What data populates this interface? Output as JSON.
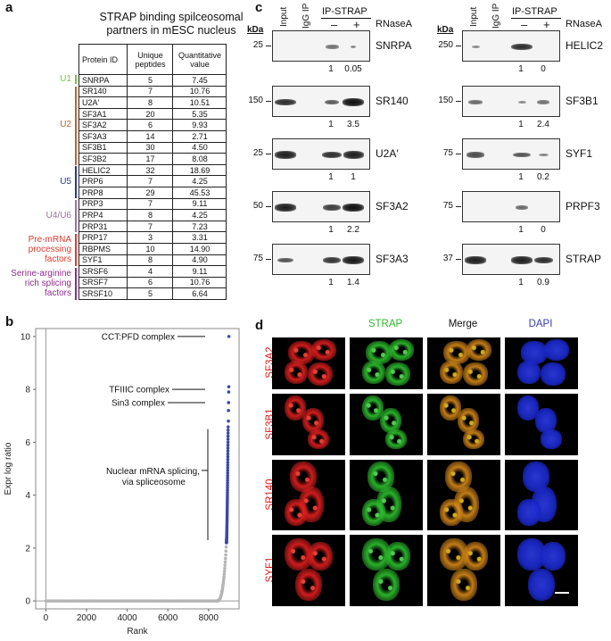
{
  "panel_letters": {
    "a": "a",
    "b": "b",
    "c": "c",
    "d": "d"
  },
  "panel_a": {
    "title_line1": "STRAP binding spilceosomal",
    "title_line2": "partners in mESC nucleus",
    "headers": {
      "protein_id": "Protein ID",
      "unique_peptides": "Unique peptides",
      "quant_value": "Quantitative value"
    },
    "rows": [
      {
        "protein": "SNRPA",
        "peptides": "5",
        "value": "7.45"
      },
      {
        "protein": "SR140",
        "peptides": "7",
        "value": "10.76"
      },
      {
        "protein": "U2A′",
        "peptides": "8",
        "value": "10.51"
      },
      {
        "protein": "SF3A1",
        "peptides": "20",
        "value": "5.35"
      },
      {
        "protein": "SF3A2",
        "peptides": "6",
        "value": "9.93"
      },
      {
        "protein": "SF3A3",
        "peptides": "14",
        "value": "2.71"
      },
      {
        "protein": "SF3B1",
        "peptides": "30",
        "value": "4.50"
      },
      {
        "protein": "SF3B2",
        "peptides": "17",
        "value": "8.08"
      },
      {
        "protein": "HELIC2",
        "peptides": "32",
        "value": "18.69"
      },
      {
        "protein": "PRP6",
        "peptides": "7",
        "value": "4.25"
      },
      {
        "protein": "PRP8",
        "peptides": "29",
        "value": "45.53"
      },
      {
        "protein": "PRP3",
        "peptides": "7",
        "value": "9.11"
      },
      {
        "protein": "PRP4",
        "peptides": "8",
        "value": "4.25"
      },
      {
        "protein": "PRP31",
        "peptides": "7",
        "value": "7.23"
      },
      {
        "protein": "PRP17",
        "peptides": "3",
        "value": "3.31"
      },
      {
        "protein": "RBPMS",
        "peptides": "10",
        "value": "14.90"
      },
      {
        "protein": "SYF1",
        "peptides": "8",
        "value": "4.90"
      },
      {
        "protein": "SRSF6",
        "peptides": "4",
        "value": "9.11"
      },
      {
        "protein": "SRSF7",
        "peptides": "6",
        "value": "10.76"
      },
      {
        "protein": "SRSF10",
        "peptides": "5",
        "value": "6.64"
      }
    ],
    "groups": [
      {
        "label": "U1",
        "color": "#7cc242"
      },
      {
        "label": "U2",
        "color": "#b8672e"
      },
      {
        "label": "U5",
        "color": "#2b3990"
      },
      {
        "label": "U4/U6",
        "color": "#a0719e"
      },
      {
        "label_l1": "Pre-mRNA",
        "label_l2": "processing",
        "label_l3": "factors",
        "color": "#e03c31"
      },
      {
        "label_l1": "Serine-arginine",
        "label_l2": "rich splicing",
        "label_l3": "factors",
        "color": "#8c2d8c"
      }
    ]
  },
  "chart_data": {
    "type": "scatter",
    "xlabel": "Rank",
    "ylabel": "Expr log ratio",
    "xlim": [
      -500,
      9500
    ],
    "ylim": [
      -0.3,
      10.3
    ],
    "x_ticks": [
      "0",
      "2000",
      "4000",
      "6000",
      "8000"
    ],
    "x_tick_values": [
      0,
      2000,
      4000,
      6000,
      8000
    ],
    "y_ticks": [
      "0",
      "2",
      "4",
      "6",
      "8",
      "10"
    ],
    "y_tick_values": [
      0,
      2,
      4,
      6,
      8,
      10
    ],
    "grey_color": "#b5b5b5",
    "blue_color": "#3a49a8",
    "annotations": [
      {
        "text": "CCT:PFD complex",
        "y": 10
      },
      {
        "text": "TFIIIC complex",
        "y": 8
      },
      {
        "text": "Sin3 complex",
        "y": 7.5
      },
      {
        "text_l1": "Nuclear mRNA splicing,",
        "text_l2": "via spliceosome",
        "y_top": 6.5,
        "y_bottom": 2.3
      }
    ]
  },
  "panel_c": {
    "kda": "kDa",
    "lanes": {
      "input": "Input",
      "igg": "IgG IP",
      "ip": "IP-STRAP",
      "minus": "–",
      "plus": "+",
      "rnase": "RNaseA"
    },
    "left": [
      {
        "name": "SNRPA",
        "mw": "25",
        "q1": "1",
        "q2": "0.05"
      },
      {
        "name": "SR140",
        "mw": "150",
        "q1": "1",
        "q2": "3.5"
      },
      {
        "name": "U2A′",
        "mw": "25",
        "q1": "1",
        "q2": "1"
      },
      {
        "name": "SF3A2",
        "mw": "50",
        "q1": "1",
        "q2": "2.2"
      },
      {
        "name": "SF3A3",
        "mw": "75",
        "q1": "1",
        "q2": "1.4"
      }
    ],
    "right": [
      {
        "name": "HELIC2",
        "mw": "250",
        "q1": "1",
        "q2": "0"
      },
      {
        "name": "SF3B1",
        "mw": "150",
        "q1": "1",
        "q2": "2.4"
      },
      {
        "name": "SYF1",
        "mw": "75",
        "q1": "1",
        "q2": "0.2"
      },
      {
        "name": "PRPF3",
        "mw": "75",
        "q1": "1",
        "q2": "0"
      },
      {
        "name": "STRAP",
        "mw": "37",
        "q1": "1",
        "q2": "0.9"
      }
    ]
  },
  "panel_d": {
    "channels": [
      {
        "label": "STRAP",
        "color": "#2db52d"
      },
      {
        "label": "Merge",
        "color": "#111111"
      },
      {
        "label": "DAPI",
        "color": "#3a3ab0"
      }
    ],
    "rows": [
      "SF3A2",
      "SF3B1",
      "SR140",
      "SYF1"
    ],
    "row_color": "#e01b1b"
  }
}
